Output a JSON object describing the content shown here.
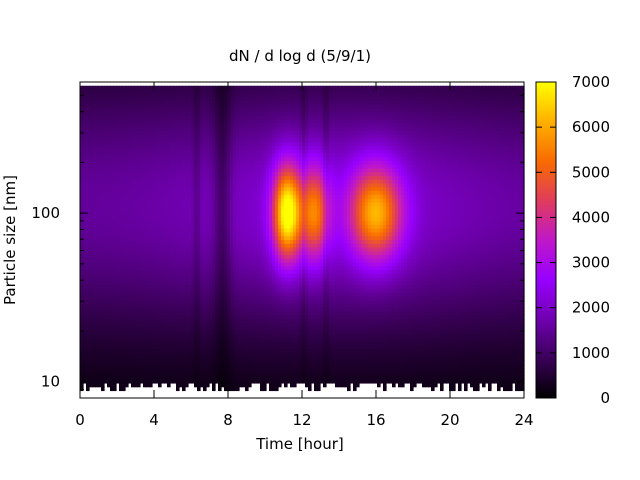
{
  "chart_data": {
    "type": "heatmap",
    "title": "dN / d log d (5/9/1)",
    "xlabel": "Time [hour]",
    "ylabel": "Particle size [nm]",
    "xlim": [
      0,
      24
    ],
    "ylim": [
      8,
      600
    ],
    "y_scale": "log",
    "x_ticks": [
      "0",
      "4",
      "8",
      "12",
      "16",
      "20",
      "24"
    ],
    "y_ticks": [
      "10",
      "100"
    ],
    "colorbar": {
      "min": 0,
      "max": 7000,
      "ticks": [
        "0",
        "1000",
        "2000",
        "3000",
        "4000",
        "5000",
        "6000",
        "7000"
      ],
      "palette": [
        "#000000",
        "#3a0058",
        "#7000b0",
        "#9800ff",
        "#c018c8",
        "#e03c5c",
        "#f86c00",
        "#ffb000",
        "#ffff00"
      ]
    },
    "peaks": [
      {
        "time": 11.2,
        "size": 100,
        "value": 6200
      },
      {
        "time": 12.7,
        "size": 100,
        "value": 4200
      },
      {
        "time": 16.0,
        "size": 100,
        "value": 5000
      }
    ]
  }
}
